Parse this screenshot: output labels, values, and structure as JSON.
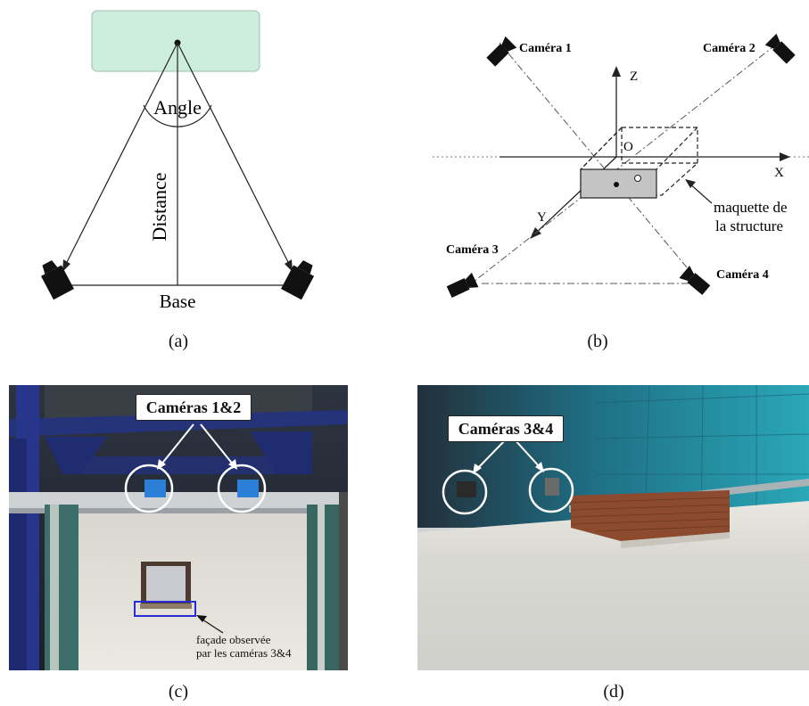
{
  "panel_a": {
    "angle_label": "Angle",
    "distance_label": "Distance",
    "base_label": "Base",
    "caption": "(a)",
    "colors": {
      "box_fill": "#cdeedd",
      "box_stroke": "#9fbfb0"
    }
  },
  "panel_b": {
    "camera_1": "Caméra 1",
    "camera_2": "Caméra 2",
    "camera_3": "Caméra 3",
    "camera_4": "Caméra 4",
    "axis_z": "Z",
    "axis_x": "X",
    "axis_y": "Y",
    "origin": "O",
    "model_label_line1": "maquette de",
    "model_label_line2": "la structure",
    "caption": "(b)"
  },
  "panel_c": {
    "callout": "Caméras 1&2",
    "note_line1": "façade observée",
    "note_line2": "par les caméras 3&4",
    "caption": "(c)"
  },
  "panel_d": {
    "callout": "Caméras 3&4",
    "caption": "(d)"
  }
}
